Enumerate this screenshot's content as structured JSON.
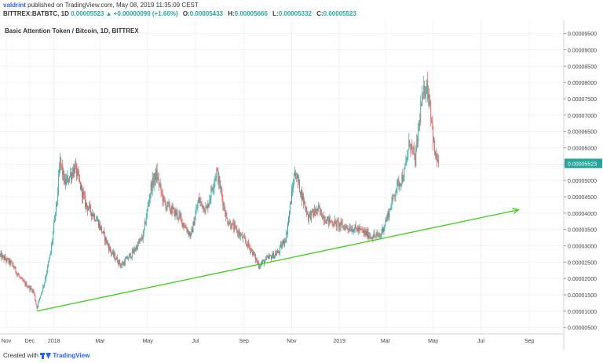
{
  "header": {
    "publisher": "valdrint",
    "published_text": "published on TradingView.com, May 08, 2019 11:35:09 CEST",
    "symbol": "BITTREX:BATBTC, 1D",
    "last_price": "0.00005523",
    "change": "▲ +0.00000090 (+1.66%)",
    "o_label": "O:",
    "o_value": "0.00005433",
    "h_label": "H:",
    "h_value": "0.00005666",
    "l_label": "L:",
    "l_value": "0.00005332",
    "c_label": "C:",
    "c_value": "0.00005523"
  },
  "footer": {
    "created_with": "Created with",
    "brand": "TradingView"
  },
  "colors": {
    "up": "#26a69a",
    "down": "#ef5350",
    "trendline": "#3ec91c",
    "price_label_bg": "#26a69a"
  },
  "chart_data": {
    "type": "candlestick",
    "title": "Basic Attention Token / Bitcoin, 1D, BITTREX",
    "y_axis_position": "right",
    "ylim": [
      3e-06,
      9.9e-05
    ],
    "y_ticks": [
      "0.00000500",
      "0.00001000",
      "0.00001500",
      "0.00002000",
      "0.00002500",
      "0.00003000",
      "0.00003500",
      "0.00004000",
      "0.00004500",
      "0.00005000",
      "0.00005500",
      "0.00006000",
      "0.00006500",
      "0.00007000",
      "0.00007500",
      "0.00008000",
      "0.00008500",
      "0.00009000",
      "0.00009500"
    ],
    "x_ticks": [
      "Nov",
      "Dec",
      "2018",
      "Mar",
      "May",
      "Jul",
      "Sep",
      "Nov",
      "2019",
      "Mar",
      "May",
      "Jul",
      "Sep"
    ],
    "x_range": [
      "2017-10-24",
      "2019-10-15"
    ],
    "last_price_label": "0.00005523",
    "price_path": [
      {
        "date": "2017-10-24",
        "price": 2.7e-05
      },
      {
        "date": "2017-11-08",
        "price": 2.45e-05
      },
      {
        "date": "2017-11-20",
        "price": 1.95e-05
      },
      {
        "date": "2017-12-06",
        "price": 1.6e-05
      },
      {
        "date": "2017-12-10",
        "price": 1.1e-05
      },
      {
        "date": "2017-12-20",
        "price": 1.9e-05
      },
      {
        "date": "2017-12-28",
        "price": 2.8e-05
      },
      {
        "date": "2018-01-05",
        "price": 4.4e-05
      },
      {
        "date": "2018-01-09",
        "price": 5.6e-05
      },
      {
        "date": "2018-01-15",
        "price": 4.9e-05
      },
      {
        "date": "2018-01-28",
        "price": 5.4e-05
      },
      {
        "date": "2018-02-10",
        "price": 4.3e-05
      },
      {
        "date": "2018-02-25",
        "price": 3.8e-05
      },
      {
        "date": "2018-03-15",
        "price": 2.8e-05
      },
      {
        "date": "2018-03-28",
        "price": 2.4e-05
      },
      {
        "date": "2018-04-12",
        "price": 2.8e-05
      },
      {
        "date": "2018-04-25",
        "price": 3.3e-05
      },
      {
        "date": "2018-05-05",
        "price": 4.8e-05
      },
      {
        "date": "2018-05-12",
        "price": 5.2e-05
      },
      {
        "date": "2018-05-22",
        "price": 4.3e-05
      },
      {
        "date": "2018-06-10",
        "price": 3.9e-05
      },
      {
        "date": "2018-06-25",
        "price": 3.3e-05
      },
      {
        "date": "2018-07-05",
        "price": 4.4e-05
      },
      {
        "date": "2018-07-15",
        "price": 4.1e-05
      },
      {
        "date": "2018-07-28",
        "price": 5.3e-05
      },
      {
        "date": "2018-08-10",
        "price": 3.8e-05
      },
      {
        "date": "2018-08-25",
        "price": 3.4e-05
      },
      {
        "date": "2018-09-10",
        "price": 2.9e-05
      },
      {
        "date": "2018-09-20",
        "price": 2.4e-05
      },
      {
        "date": "2018-10-01",
        "price": 2.6e-05
      },
      {
        "date": "2018-10-15",
        "price": 2.8e-05
      },
      {
        "date": "2018-10-25",
        "price": 3.3e-05
      },
      {
        "date": "2018-11-05",
        "price": 5.3e-05
      },
      {
        "date": "2018-11-12",
        "price": 4.7e-05
      },
      {
        "date": "2018-11-22",
        "price": 3.9e-05
      },
      {
        "date": "2018-12-05",
        "price": 4.1e-05
      },
      {
        "date": "2018-12-15",
        "price": 3.8e-05
      },
      {
        "date": "2019-01-05",
        "price": 3.6e-05
      },
      {
        "date": "2019-01-25",
        "price": 3.5e-05
      },
      {
        "date": "2019-02-10",
        "price": 3.3e-05
      },
      {
        "date": "2019-02-22",
        "price": 3.3e-05
      },
      {
        "date": "2019-03-05",
        "price": 4e-05
      },
      {
        "date": "2019-03-15",
        "price": 4.8e-05
      },
      {
        "date": "2019-03-25",
        "price": 5.2e-05
      },
      {
        "date": "2019-04-01",
        "price": 6.2e-05
      },
      {
        "date": "2019-04-08",
        "price": 5.6e-05
      },
      {
        "date": "2019-04-15",
        "price": 7.2e-05
      },
      {
        "date": "2019-04-22",
        "price": 8e-05
      },
      {
        "date": "2019-04-27",
        "price": 7.4e-05
      },
      {
        "date": "2019-05-03",
        "price": 5.8e-05
      },
      {
        "date": "2019-05-08",
        "price": 5.52e-05
      }
    ],
    "trendline": {
      "start": {
        "date": "2017-12-10",
        "price": 1e-05
      },
      "end": {
        "date": "2019-08-18",
        "price": 4.1e-05
      },
      "arrow": true
    }
  }
}
